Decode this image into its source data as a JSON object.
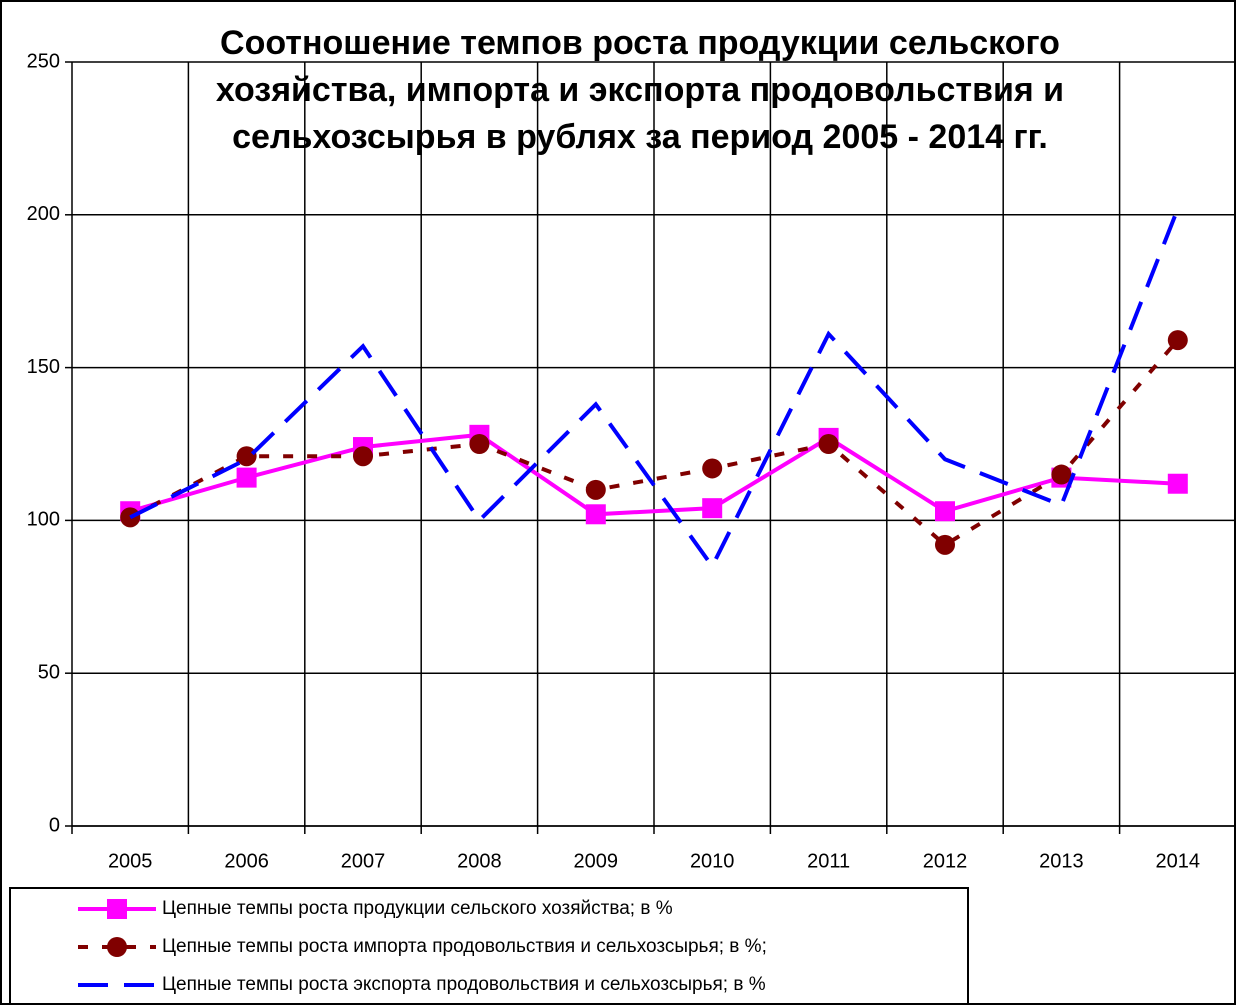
{
  "chart_data": {
    "type": "line",
    "title": [
      "Соотношение темпов роста продукции сельского",
      "хозяйства, импорта и экспорта продовольствия и",
      "сельхозсырья в рублях за период 2005 - 2014 гг."
    ],
    "categories": [
      "2005",
      "2006",
      "2007",
      "2008",
      "2009",
      "2010",
      "2011",
      "2012",
      "2013",
      "2014"
    ],
    "series": [
      {
        "name": "Цепные темпы роста продукции сельского хозяйства; в %",
        "color": "#ff00ff",
        "dash": "solid",
        "marker": "square",
        "values": [
          103,
          114,
          124,
          128,
          102,
          104,
          127,
          103,
          114,
          112
        ]
      },
      {
        "name": "Цепные темпы роста импорта продовольствия и сельхозсырья; в %;",
        "color": "#800000",
        "dash": "dotted",
        "marker": "circle",
        "values": [
          101,
          121,
          121,
          125,
          110,
          117,
          125,
          92,
          115,
          159
        ]
      },
      {
        "name": "Цепные темпы роста экспорта продовольствия и сельхозсырья; в %",
        "color": "#0000ff",
        "dash": "dashed",
        "marker": "none",
        "values": [
          101,
          120,
          157,
          100,
          138,
          85,
          161,
          120,
          105,
          202
        ]
      }
    ],
    "ylim": [
      0,
      250
    ],
    "yticks": [
      0,
      50,
      100,
      150,
      200,
      250
    ],
    "grid": true,
    "legend": "bottom"
  }
}
